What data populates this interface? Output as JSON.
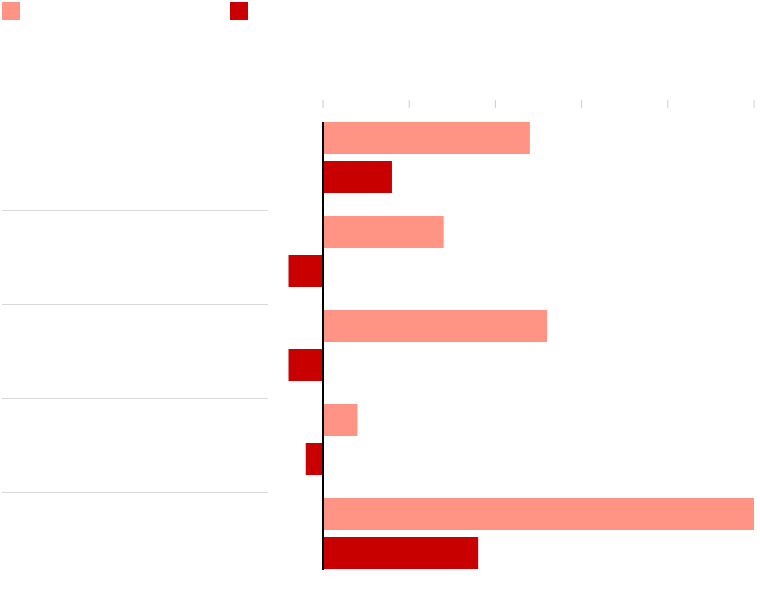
{
  "chart_data": {
    "type": "bar",
    "orientation": "horizontal",
    "categories": [
      "",
      "",
      "",
      "",
      ""
    ],
    "series": [
      {
        "name": "",
        "color": "#ff9485",
        "values": [
          24,
          14,
          26,
          4,
          50
        ]
      },
      {
        "name": "",
        "color": "#c80000",
        "values": [
          8,
          -4,
          -4,
          -2,
          18
        ]
      }
    ],
    "xlim": [
      0,
      50
    ],
    "xticks": [
      0,
      10,
      20,
      30,
      40,
      50
    ],
    "xtick_labels": [
      "",
      "",
      "",
      "",
      "",
      ""
    ],
    "grid": false,
    "legend_position": "top-left",
    "title": "",
    "xlabel": "",
    "ylabel": ""
  }
}
